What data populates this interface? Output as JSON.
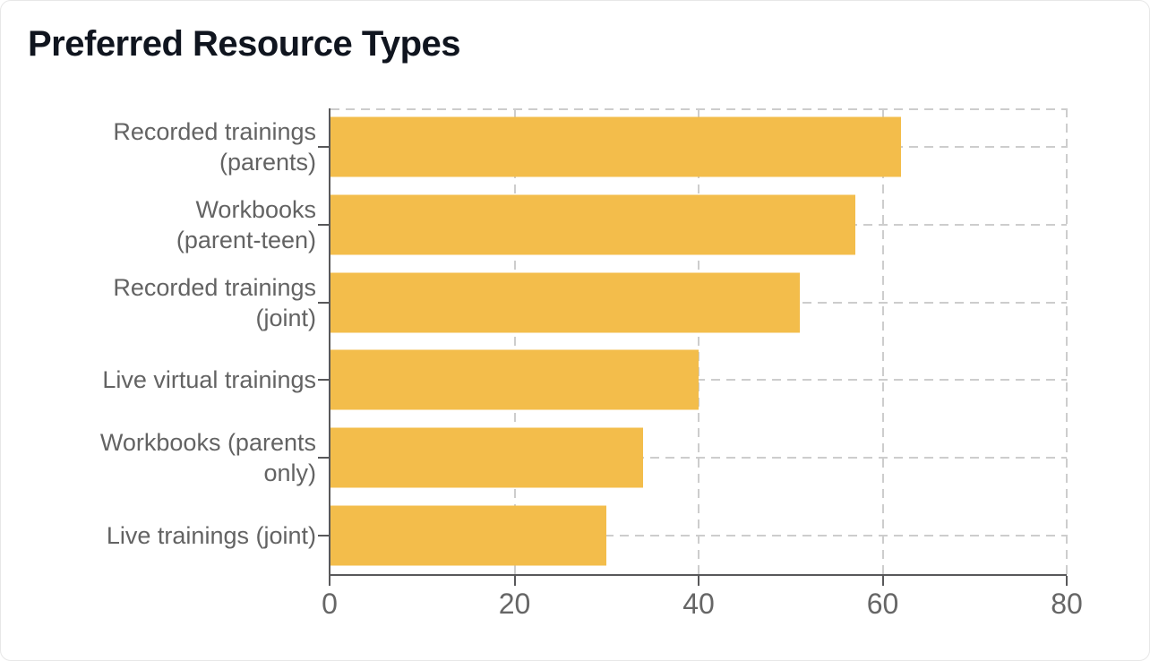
{
  "chart_data": {
    "type": "bar",
    "orientation": "horizontal",
    "title": "Preferred Resource Types",
    "categories": [
      "Recorded trainings\n(parents)",
      "Workbooks\n(parent-teen)",
      "Recorded trainings\n(joint)",
      "Live virtual trainings",
      "Workbooks (parents\nonly)",
      "Live trainings (joint)"
    ],
    "values": [
      62,
      57,
      51,
      40,
      34,
      30
    ],
    "xlabel": "",
    "ylabel": "",
    "xlim": [
      0,
      80
    ],
    "xticks": [
      0,
      20,
      40,
      60,
      80
    ],
    "grid": "dashed",
    "legend": "none",
    "colors": {
      "bar": "#F3BD4B",
      "gridline": "#CDCDCD",
      "axis_line": "#58585A",
      "tick_label": "#666666",
      "category_label": "#636363",
      "title": "#10151F",
      "background": "#FFFFFF",
      "card_border": "#E7E7E7"
    }
  }
}
